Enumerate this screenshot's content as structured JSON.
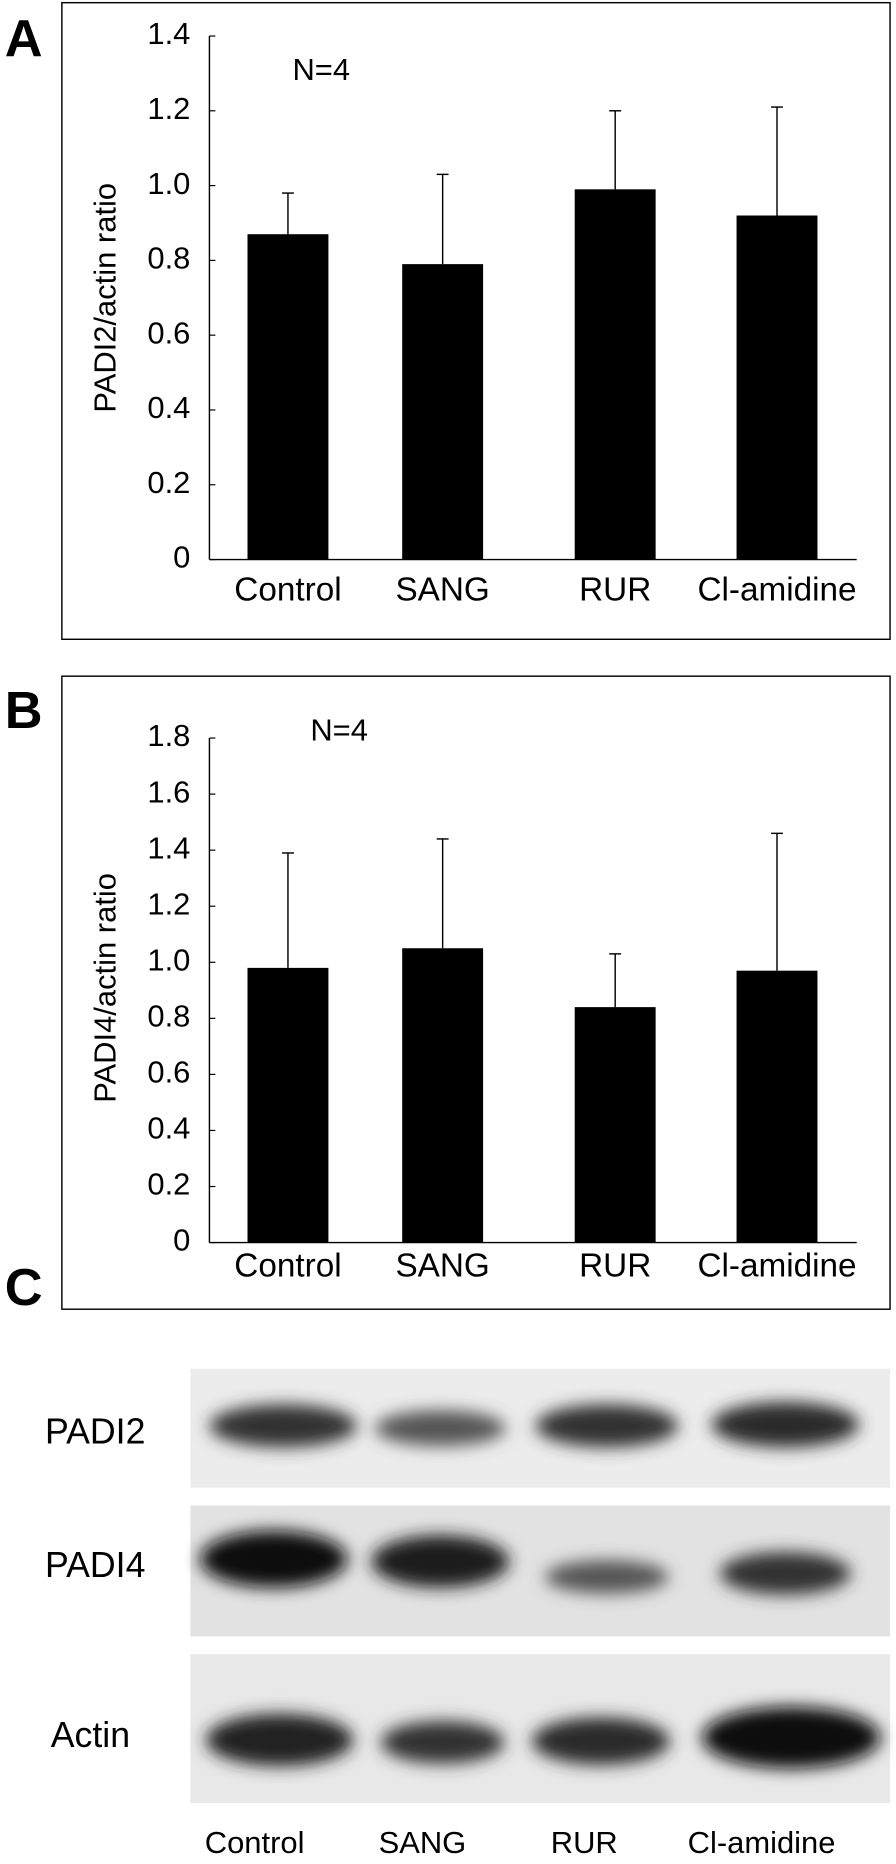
{
  "chart_data": [
    {
      "type": "bar",
      "panel": "A",
      "annotation": "N=4",
      "y_label": "PADI2/actin ratio",
      "categories": [
        "Control",
        "SANG",
        "RUR",
        "Cl-amidine"
      ],
      "values": [
        0.87,
        0.79,
        0.99,
        0.92
      ],
      "errors": [
        0.11,
        0.24,
        0.21,
        0.29
      ],
      "color": "#000000",
      "ylim": [
        0,
        1.4
      ],
      "yticks": [
        0,
        0.2,
        0.4,
        0.6,
        0.8,
        {
          "value": 1,
          "label": "1.0"
        },
        1.2,
        1.4
      ]
    },
    {
      "type": "bar",
      "panel": "B",
      "annotation": "N=4",
      "y_label": "PADI4/actin ratio",
      "categories": [
        "Control",
        "SANG",
        "RUR",
        "Cl-amidine"
      ],
      "values": [
        0.98,
        1.05,
        0.84,
        0.97
      ],
      "errors": [
        0.41,
        0.39,
        0.19,
        0.49
      ],
      "color": "#000000",
      "ylim": [
        0,
        1.8
      ],
      "yticks": [
        0,
        0.2,
        0.4,
        0.6,
        0.8,
        {
          "value": 1,
          "label": "1.0"
        },
        1.2,
        1.4,
        1.6,
        1.8
      ]
    }
  ],
  "blot": {
    "panel": "C",
    "rows": [
      "PADI2",
      "PADI4",
      "Actin"
    ],
    "lanes": [
      "Control",
      "SANG",
      "RUR",
      "Cl-amidine"
    ]
  }
}
